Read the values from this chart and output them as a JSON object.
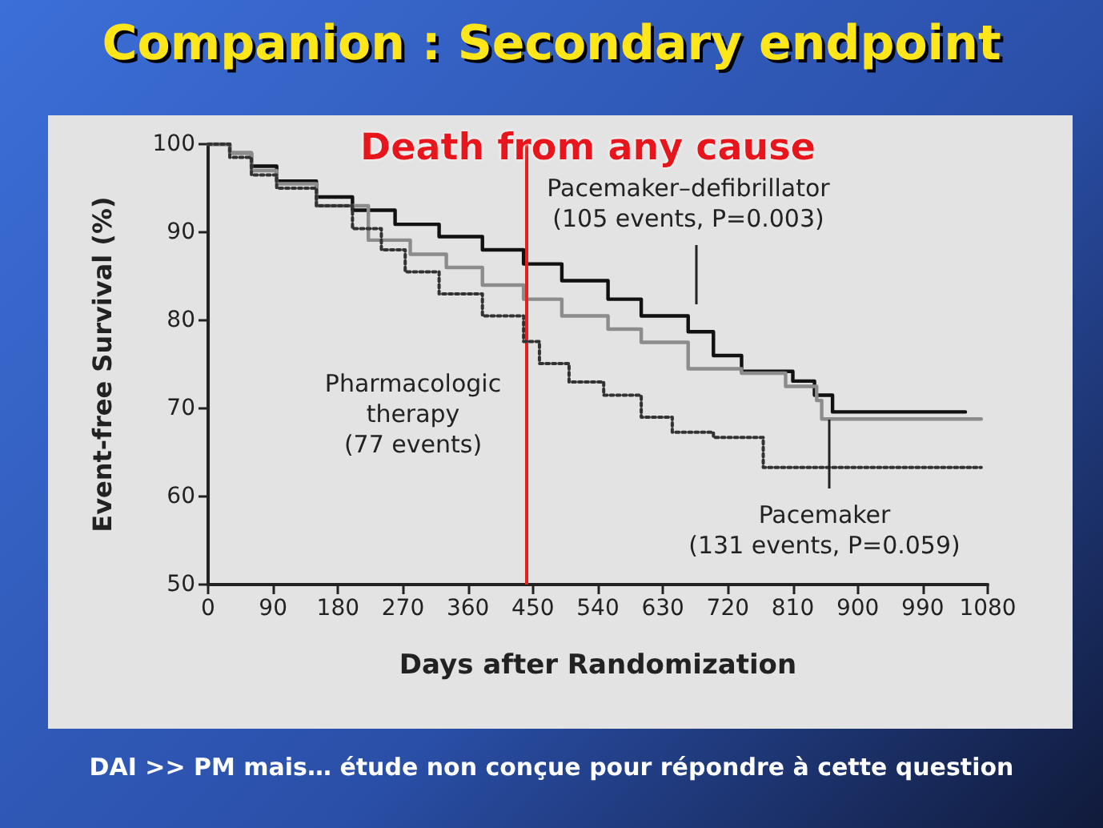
{
  "chart_data": {
    "type": "step",
    "title": "Companion : Secondary endpoint",
    "subtitle": "Death from any cause",
    "xlabel": "Days after Randomization",
    "ylabel": "Event-free Survival (%)",
    "xlim": [
      0,
      1080
    ],
    "xticks": [
      0,
      90,
      180,
      270,
      360,
      450,
      540,
      630,
      720,
      810,
      900,
      990,
      1080
    ],
    "ylim": [
      50,
      100
    ],
    "yticks": [
      50,
      60,
      70,
      80,
      90,
      100
    ],
    "grid": false,
    "legend": false,
    "marker": "none",
    "series": [
      {
        "name": "Pacemaker–defibrillator\n(105 events, P=0.003)",
        "color": "#111111",
        "line_style": "solid",
        "x": [
          0,
          30,
          60,
          95,
          150,
          200,
          259,
          320,
          380,
          437,
          490,
          554,
          600,
          665,
          700,
          739,
          775,
          810,
          840,
          865,
          1049
        ],
        "values": [
          100,
          99,
          97.5,
          95.8,
          94,
          92.5,
          90.9,
          89.5,
          88,
          86.4,
          84.5,
          82.4,
          80.5,
          78.7,
          76,
          74.2,
          74.2,
          73.1,
          71.5,
          69.6,
          69.6
        ]
      },
      {
        "name": "Pacemaker\n(131 events, P=0.059)",
        "color": "#8c8c8c",
        "line_style": "solid",
        "x": [
          0,
          30,
          60,
          95,
          150,
          222,
          280,
          330,
          380,
          437,
          490,
          554,
          600,
          665,
          739,
          800,
          843,
          850,
          1071
        ],
        "values": [
          100,
          99,
          97,
          95.5,
          93,
          89.1,
          87.5,
          86,
          84,
          82.4,
          80.5,
          79,
          77.5,
          74.5,
          74,
          72.5,
          70.9,
          68.8,
          68.8
        ]
      },
      {
        "name": "Pharmacologic\ntherapy\n(77 events)",
        "color": "#333333",
        "line_style": "dotted",
        "x": [
          0,
          30,
          60,
          95,
          150,
          200,
          240,
          273,
          320,
          380,
          437,
          459,
          500,
          548,
          600,
          643,
          700,
          747,
          769,
          1071
        ],
        "values": [
          100,
          98.5,
          96.5,
          95,
          93,
          90.4,
          88,
          85.5,
          83,
          80.5,
          77.6,
          75.1,
          73,
          71.5,
          69,
          67.3,
          66.7,
          66.7,
          63.3,
          63.3
        ]
      }
    ],
    "ref_lines": [
      {
        "axis": "x",
        "value": 440,
        "color": "#e8201c"
      }
    ],
    "annotations": [
      "DAI >> PM mais… étude non conçue pour répondre à cette question"
    ]
  }
}
